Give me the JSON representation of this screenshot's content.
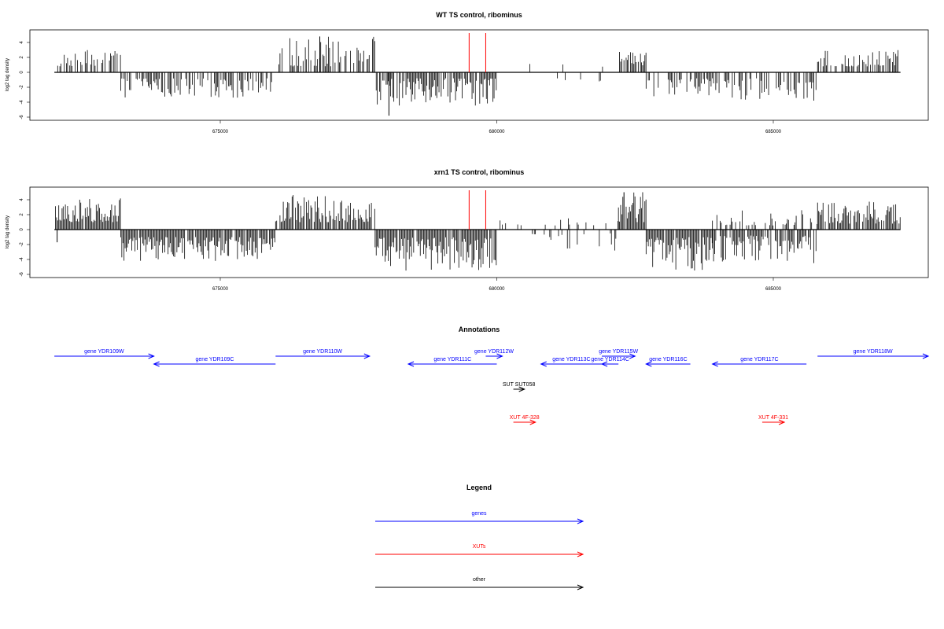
{
  "panels": [
    {
      "id": "wt",
      "title": "WT TS control, ribominus",
      "ylabel": "log2 tag density",
      "yticks": [
        "4",
        "2",
        "0",
        "-2",
        "-4",
        "-6"
      ],
      "xticks": [
        "675000",
        "680000",
        "685000"
      ]
    },
    {
      "id": "xrn1",
      "title": "xrn1 TS control, ribominus",
      "ylabel": "log2 tag density",
      "yticks": [
        "4",
        "2",
        "0",
        "-2",
        "-4",
        "-6"
      ],
      "xticks": [
        "675000",
        "680000",
        "685000"
      ]
    }
  ],
  "annotations": {
    "title": "Annotations",
    "features": [
      {
        "label": "gene YDR109W",
        "start": 672000,
        "end": 673800,
        "strand": "+",
        "color": "#0000ff"
      },
      {
        "label": "gene YDR109C",
        "start": 673800,
        "end": 676000,
        "strand": "-",
        "color": "#0000ff"
      },
      {
        "label": "gene YDR110W",
        "start": 676000,
        "end": 677700,
        "strand": "+",
        "color": "#0000ff"
      },
      {
        "label": "gene YDR111C",
        "start": 678400,
        "end": 680000,
        "strand": "-",
        "color": "#0000ff"
      },
      {
        "label": "gene YDR112W",
        "start": 679800,
        "end": 680100,
        "strand": "+",
        "color": "#0000ff"
      },
      {
        "label": "gene YDR113C",
        "start": 680800,
        "end": 681900,
        "strand": "-",
        "color": "#0000ff"
      },
      {
        "label": "gene YDR114C",
        "start": 681900,
        "end": 682200,
        "strand": "-",
        "color": "#0000ff"
      },
      {
        "label": "gene YDR115W",
        "start": 681900,
        "end": 682500,
        "strand": "+",
        "color": "#0000ff"
      },
      {
        "label": "gene YDR116C",
        "start": 682700,
        "end": 683500,
        "strand": "-",
        "color": "#0000ff"
      },
      {
        "label": "gene YDR117C",
        "start": 683900,
        "end": 685600,
        "strand": "-",
        "color": "#0000ff"
      },
      {
        "label": "gene YDR118W",
        "start": 685800,
        "end": 688000,
        "strand": "+",
        "color": "#0000ff"
      },
      {
        "label": "SUT SUT058",
        "start": 680300,
        "end": 680500,
        "strand": "+",
        "color": "#000000"
      },
      {
        "label": "XUT 4F-328",
        "start": 680300,
        "end": 680700,
        "strand": "+",
        "color": "#ff0000"
      },
      {
        "label": "XUT 4F-331",
        "start": 684800,
        "end": 685200,
        "strand": "+",
        "color": "#ff0000"
      }
    ]
  },
  "legend": {
    "title": "Legend",
    "items": [
      {
        "label": "genes",
        "color": "#0000ff"
      },
      {
        "label": "XUTs",
        "color": "#ff0000"
      },
      {
        "label": "other",
        "color": "#000000"
      }
    ]
  },
  "chart_data": [
    {
      "type": "bar",
      "title": "WT TS control, ribominus",
      "ylabel": "log2 tag density",
      "xlim": [
        671400,
        687500
      ],
      "ylim": [
        -6,
        5.5
      ],
      "markers": [
        679500,
        679800
      ],
      "marker_color": "#ff0000",
      "segments": [
        {
          "start": 672000,
          "end": 673200,
          "sign": 1,
          "min": 0.8,
          "max": 3.3,
          "density": 0.55
        },
        {
          "start": 673200,
          "end": 676000,
          "sign": -1,
          "min": 0.8,
          "max": 3.4,
          "density": 0.55
        },
        {
          "start": 676000,
          "end": 677800,
          "sign": 1,
          "min": 0.8,
          "max": 4.8,
          "density": 0.65
        },
        {
          "start": 677800,
          "end": 680000,
          "sign": -1,
          "min": 0.8,
          "max": 4.5,
          "density": 0.8
        },
        {
          "start": 680000,
          "end": 682200,
          "sign": 1,
          "min": 0.6,
          "max": 1.2,
          "density": 0.05
        },
        {
          "start": 680400,
          "end": 682200,
          "sign": -1,
          "min": 0.6,
          "max": 1.6,
          "density": 0.1
        },
        {
          "start": 682200,
          "end": 682700,
          "sign": 1,
          "min": 0.8,
          "max": 3.0,
          "density": 0.6
        },
        {
          "start": 682700,
          "end": 683900,
          "sign": -1,
          "min": 0.8,
          "max": 3.5,
          "density": 0.6
        },
        {
          "start": 683900,
          "end": 685800,
          "sign": -1,
          "min": 0.8,
          "max": 3.8,
          "density": 0.6
        },
        {
          "start": 685800,
          "end": 687300,
          "sign": 1,
          "min": 0.8,
          "max": 3.0,
          "density": 0.7
        }
      ],
      "spikes": [
        {
          "x": 678050,
          "y": -5.8
        },
        {
          "x": 676800,
          "y": 4.8
        }
      ]
    },
    {
      "type": "bar",
      "title": "xrn1 TS control, ribominus",
      "ylabel": "log2 tag density",
      "xlim": [
        671400,
        687500
      ],
      "ylim": [
        -6,
        5.5
      ],
      "markers": [
        679500,
        679800
      ],
      "marker_color": "#ff0000",
      "segments": [
        {
          "start": 672000,
          "end": 673200,
          "sign": 1,
          "min": 1.0,
          "max": 4.2,
          "density": 0.95
        },
        {
          "start": 673200,
          "end": 676000,
          "sign": -1,
          "min": 1.0,
          "max": 4.2,
          "density": 0.95
        },
        {
          "start": 676000,
          "end": 677800,
          "sign": 1,
          "min": 1.0,
          "max": 4.8,
          "density": 0.9
        },
        {
          "start": 677800,
          "end": 680000,
          "sign": -1,
          "min": 1.0,
          "max": 5.5,
          "density": 0.95
        },
        {
          "start": 680000,
          "end": 682200,
          "sign": 1,
          "min": 0.5,
          "max": 2.2,
          "density": 0.15
        },
        {
          "start": 680400,
          "end": 682200,
          "sign": -1,
          "min": 0.5,
          "max": 3.0,
          "density": 0.2
        },
        {
          "start": 682200,
          "end": 682700,
          "sign": 1,
          "min": 1.0,
          "max": 5.0,
          "density": 0.9
        },
        {
          "start": 682700,
          "end": 683900,
          "sign": -1,
          "min": 1.0,
          "max": 5.5,
          "density": 0.95
        },
        {
          "start": 683900,
          "end": 685800,
          "sign": -1,
          "min": 0.8,
          "max": 4.5,
          "density": 0.75
        },
        {
          "start": 683900,
          "end": 685800,
          "sign": 1,
          "min": 0.5,
          "max": 2.8,
          "density": 0.4
        },
        {
          "start": 685800,
          "end": 687300,
          "sign": 1,
          "min": 0.8,
          "max": 3.8,
          "density": 0.85
        }
      ],
      "spikes": [
        {
          "x": 682300,
          "y": 5.0
        },
        {
          "x": 672050,
          "y": -1.7
        }
      ]
    }
  ]
}
